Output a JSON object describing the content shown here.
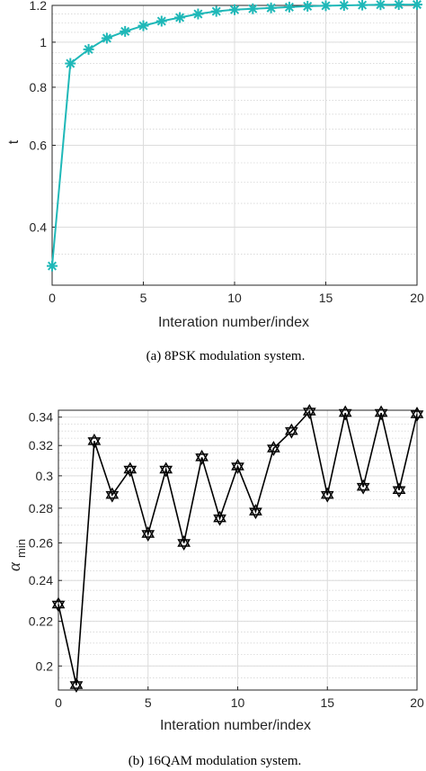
{
  "charts": [
    {
      "id": "a",
      "caption": "(a)  8PSK modulation system.",
      "chart_data": {
        "type": "line",
        "title": "",
        "xlabel": "Interation number/index",
        "ylabel": "t",
        "xlim": [
          0,
          20
        ],
        "ylim": [
          0.3,
          1.2
        ],
        "y_scale": "log",
        "grid": true,
        "xticks": [
          "0",
          "5",
          "10",
          "15",
          "20"
        ],
        "yticks": [
          "0.4",
          "0.6",
          "0.8",
          "1",
          "1.2"
        ],
        "ytick_values": [
          0.4,
          0.6,
          0.8,
          1.0,
          1.2
        ],
        "marker": "asterisk",
        "color": "#1fb8b8",
        "series": [
          {
            "x": [
              0,
              1,
              2,
              3,
              4,
              5,
              6,
              7,
              8,
              9,
              10,
              11,
              12,
              13,
              14,
              15,
              16,
              17,
              18,
              19,
              20
            ],
            "values": [
              0.33,
              0.9,
              0.965,
              1.02,
              1.055,
              1.085,
              1.11,
              1.13,
              1.15,
              1.165,
              1.175,
              1.18,
              1.185,
              1.19,
              1.195,
              1.198,
              1.2,
              1.202,
              1.204,
              1.205,
              1.205
            ]
          }
        ]
      }
    },
    {
      "id": "b",
      "caption": "(b)  16QAM modulation system.",
      "chart_data": {
        "type": "line",
        "title": "",
        "xlabel": "Interation number/index",
        "ylabel": "α_min",
        "ylabel_main": "α",
        "ylabel_sub": "min",
        "xlim": [
          0,
          20
        ],
        "ylim": [
          0.19,
          0.345
        ],
        "y_scale": "log",
        "grid": true,
        "xticks": [
          "0",
          "5",
          "10",
          "15",
          "20"
        ],
        "yticks": [
          "0.2",
          "0.22",
          "0.24",
          "0.26",
          "0.28",
          "0.3",
          "0.32",
          "0.34"
        ],
        "ytick_values": [
          0.2,
          0.22,
          0.24,
          0.26,
          0.28,
          0.3,
          0.32,
          0.34
        ],
        "marker": "hexagram",
        "color": "#000000",
        "series": [
          {
            "x": [
              0,
              1,
              2,
              3,
              4,
              5,
              6,
              7,
              8,
              9,
              10,
              11,
              12,
              13,
              14,
              15,
              16,
              17,
              18,
              19,
              20
            ],
            "values": [
              0.228,
              0.192,
              0.323,
              0.288,
              0.304,
              0.265,
              0.304,
              0.26,
              0.312,
              0.274,
              0.306,
              0.278,
              0.318,
              0.33,
              0.344,
              0.288,
              0.343,
              0.293,
              0.343,
              0.291,
              0.342
            ]
          }
        ]
      }
    }
  ]
}
